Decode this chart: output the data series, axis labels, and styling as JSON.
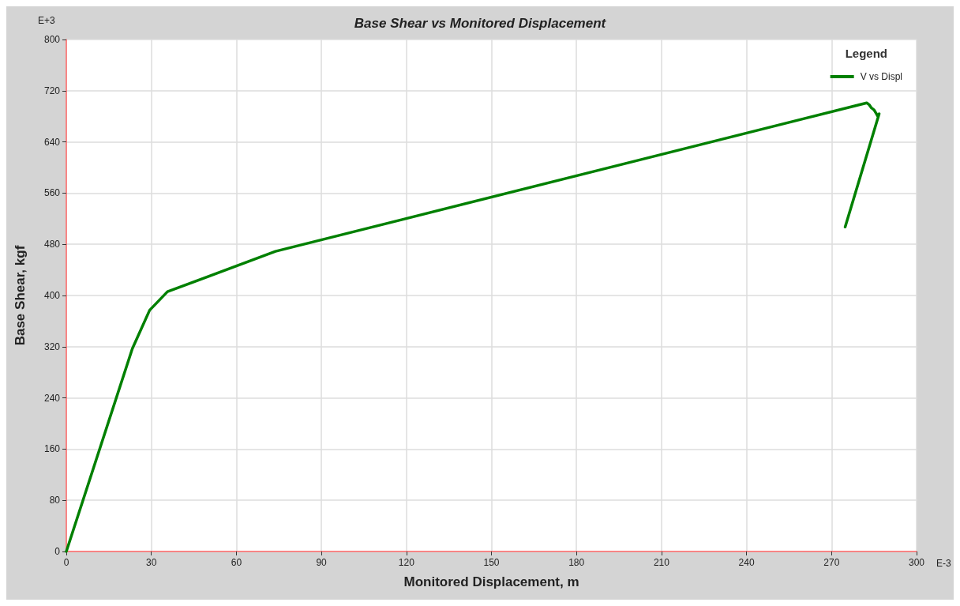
{
  "chart_data": {
    "type": "line",
    "title": "Base Shear vs Monitored Displacement",
    "xlabel": "Monitored Displacement, m",
    "ylabel": "Base Shear, kgf",
    "legend_title": "Legend",
    "legend": "top right",
    "grid": true,
    "marker": "none",
    "line_style": "solid",
    "xlim": [
      0,
      300
    ],
    "xticks": [
      0,
      30,
      60,
      90,
      120,
      150,
      180,
      210,
      240,
      270,
      300
    ],
    "ylim": [
      0,
      800
    ],
    "yticks": [
      0,
      80,
      160,
      240,
      320,
      400,
      480,
      560,
      640,
      720,
      800
    ],
    "annotations": [
      "E+3",
      "E-3"
    ],
    "series": [
      {
        "name": "V vs Displ",
        "color": "#008000",
        "x": [
          0,
          23.3,
          29.4,
          35.7,
          73.8,
          282.4,
          283.3,
          284.1,
          285,
          285.8,
          286.3,
          286.8,
          274.8
        ],
        "values": [
          0,
          317,
          377,
          406,
          469,
          701,
          698,
          693,
          690,
          684,
          680,
          684,
          507
        ]
      }
    ]
  }
}
